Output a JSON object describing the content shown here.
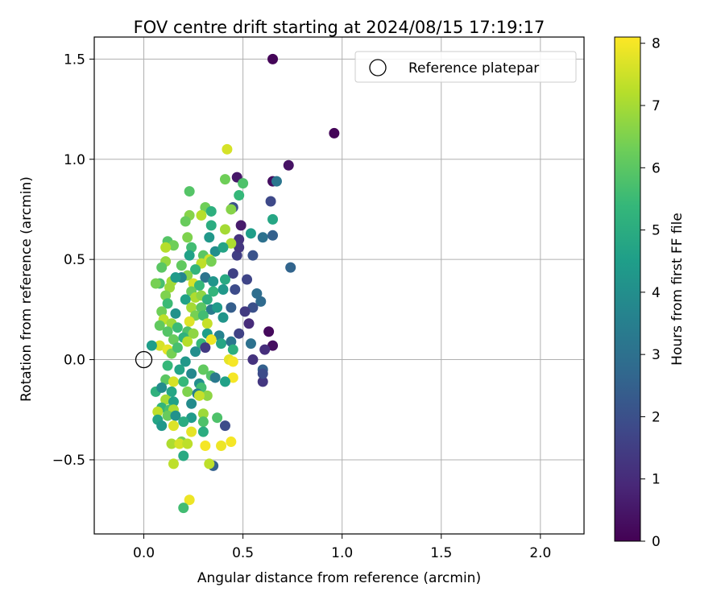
{
  "chart_data": {
    "type": "scatter",
    "title": "FOV centre drift starting at 2024/08/15 17:19:17",
    "xlabel": "Angular distance from reference (arcmin)",
    "ylabel": "Rotation from reference (arcmin)",
    "xlim": [
      -0.25,
      2.22
    ],
    "ylim": [
      -0.87,
      1.61
    ],
    "xticks": [
      0.0,
      0.5,
      1.0,
      1.5,
      2.0
    ],
    "xtick_labels": [
      "0.0",
      "0.5",
      "1.0",
      "1.5",
      "2.0"
    ],
    "yticks": [
      -0.5,
      0.0,
      0.5,
      1.0,
      1.5
    ],
    "ytick_labels": [
      "−0.5",
      "0.0",
      "0.5",
      "1.0",
      "1.5"
    ],
    "grid": true,
    "legend": {
      "position": "top-right",
      "entries": [
        "Reference platepar"
      ]
    },
    "reference_point": {
      "label": "Reference platepar",
      "x": 0.0,
      "y": 0.0
    },
    "colorbar": {
      "label": "Hours from first FF file",
      "range": [
        0,
        8.1
      ],
      "ticks": [
        0,
        1,
        2,
        3,
        4,
        5,
        6,
        7,
        8
      ],
      "colormap": "viridis"
    },
    "points": [
      {
        "x": 0.65,
        "y": 1.5,
        "c": 0.1
      },
      {
        "x": 0.96,
        "y": 1.13,
        "c": 0.1
      },
      {
        "x": 0.73,
        "y": 0.97,
        "c": 0.4
      },
      {
        "x": 0.47,
        "y": 0.91,
        "c": 0.5
      },
      {
        "x": 0.65,
        "y": 0.89,
        "c": 0.3
      },
      {
        "x": 0.67,
        "y": 0.89,
        "c": 3.2
      },
      {
        "x": 0.64,
        "y": 0.79,
        "c": 1.8
      },
      {
        "x": 0.45,
        "y": 0.76,
        "c": 2.0
      },
      {
        "x": 0.49,
        "y": 0.67,
        "c": 0.6
      },
      {
        "x": 0.48,
        "y": 0.6,
        "c": 1.2
      },
      {
        "x": 0.6,
        "y": 0.61,
        "c": 3.0
      },
      {
        "x": 0.65,
        "y": 0.62,
        "c": 2.5
      },
      {
        "x": 0.55,
        "y": 0.52,
        "c": 2.1
      },
      {
        "x": 0.47,
        "y": 0.52,
        "c": 1.5
      },
      {
        "x": 0.48,
        "y": 0.56,
        "c": 1.3
      },
      {
        "x": 0.74,
        "y": 0.46,
        "c": 2.6
      },
      {
        "x": 0.52,
        "y": 0.4,
        "c": 1.7
      },
      {
        "x": 0.46,
        "y": 0.35,
        "c": 1.9
      },
      {
        "x": 0.57,
        "y": 0.33,
        "c": 2.9
      },
      {
        "x": 0.59,
        "y": 0.29,
        "c": 2.8
      },
      {
        "x": 0.55,
        "y": 0.26,
        "c": 2.0
      },
      {
        "x": 0.44,
        "y": 0.26,
        "c": 2.4
      },
      {
        "x": 0.51,
        "y": 0.24,
        "c": 1.4
      },
      {
        "x": 0.45,
        "y": 0.43,
        "c": 1.6
      },
      {
        "x": 0.63,
        "y": 0.14,
        "c": 0.2
      },
      {
        "x": 0.65,
        "y": 0.07,
        "c": 0.3
      },
      {
        "x": 0.61,
        "y": 0.05,
        "c": 1.1
      },
      {
        "x": 0.54,
        "y": 0.08,
        "c": 3.0
      },
      {
        "x": 0.53,
        "y": 0.18,
        "c": 1.0
      },
      {
        "x": 0.48,
        "y": 0.13,
        "c": 1.6
      },
      {
        "x": 0.55,
        "y": 0.0,
        "c": 1.2
      },
      {
        "x": 0.6,
        "y": -0.05,
        "c": 2.5
      },
      {
        "x": 0.6,
        "y": -0.11,
        "c": 1.3
      },
      {
        "x": 0.6,
        "y": -0.07,
        "c": 1.9
      },
      {
        "x": 0.35,
        "y": -0.53,
        "c": 2.5
      },
      {
        "x": 0.41,
        "y": -0.33,
        "c": 1.9
      },
      {
        "x": 0.42,
        "y": 1.05,
        "c": 7.6
      },
      {
        "x": 0.41,
        "y": 0.9,
        "c": 6.3
      },
      {
        "x": 0.5,
        "y": 0.88,
        "c": 5.8
      },
      {
        "x": 0.48,
        "y": 0.82,
        "c": 5.4
      },
      {
        "x": 0.23,
        "y": 0.84,
        "c": 5.9
      },
      {
        "x": 0.31,
        "y": 0.76,
        "c": 6.3
      },
      {
        "x": 0.34,
        "y": 0.74,
        "c": 5.1
      },
      {
        "x": 0.29,
        "y": 0.72,
        "c": 7.2
      },
      {
        "x": 0.23,
        "y": 0.72,
        "c": 6.6
      },
      {
        "x": 0.44,
        "y": 0.75,
        "c": 6.6
      },
      {
        "x": 0.65,
        "y": 0.7,
        "c": 4.8
      },
      {
        "x": 0.21,
        "y": 0.69,
        "c": 6.2
      },
      {
        "x": 0.34,
        "y": 0.67,
        "c": 5.0
      },
      {
        "x": 0.41,
        "y": 0.65,
        "c": 7.0
      },
      {
        "x": 0.54,
        "y": 0.63,
        "c": 4.5
      },
      {
        "x": 0.22,
        "y": 0.61,
        "c": 6.5
      },
      {
        "x": 0.33,
        "y": 0.61,
        "c": 4.3
      },
      {
        "x": 0.12,
        "y": 0.59,
        "c": 5.9
      },
      {
        "x": 0.15,
        "y": 0.57,
        "c": 6.3
      },
      {
        "x": 0.11,
        "y": 0.56,
        "c": 7.2
      },
      {
        "x": 0.24,
        "y": 0.56,
        "c": 5.6
      },
      {
        "x": 0.44,
        "y": 0.58,
        "c": 7.1
      },
      {
        "x": 0.36,
        "y": 0.54,
        "c": 4.0
      },
      {
        "x": 0.4,
        "y": 0.56,
        "c": 4.7
      },
      {
        "x": 0.23,
        "y": 0.52,
        "c": 4.6
      },
      {
        "x": 0.3,
        "y": 0.52,
        "c": 6.0
      },
      {
        "x": 0.33,
        "y": 0.5,
        "c": 7.5
      },
      {
        "x": 0.34,
        "y": 0.49,
        "c": 6.4
      },
      {
        "x": 0.29,
        "y": 0.48,
        "c": 7.3
      },
      {
        "x": 0.11,
        "y": 0.49,
        "c": 6.8
      },
      {
        "x": 0.19,
        "y": 0.47,
        "c": 6.1
      },
      {
        "x": 0.09,
        "y": 0.46,
        "c": 6.0
      },
      {
        "x": 0.26,
        "y": 0.45,
        "c": 5.3
      },
      {
        "x": 0.22,
        "y": 0.42,
        "c": 6.6
      },
      {
        "x": 0.19,
        "y": 0.41,
        "c": 3.7
      },
      {
        "x": 0.14,
        "y": 0.39,
        "c": 7.0
      },
      {
        "x": 0.08,
        "y": 0.38,
        "c": 5.7
      },
      {
        "x": 0.06,
        "y": 0.38,
        "c": 6.4
      },
      {
        "x": 0.13,
        "y": 0.36,
        "c": 6.9
      },
      {
        "x": 0.16,
        "y": 0.41,
        "c": 4.4
      },
      {
        "x": 0.31,
        "y": 0.41,
        "c": 3.1
      },
      {
        "x": 0.41,
        "y": 0.4,
        "c": 4.9
      },
      {
        "x": 0.35,
        "y": 0.39,
        "c": 4.2
      },
      {
        "x": 0.25,
        "y": 0.38,
        "c": 7.6
      },
      {
        "x": 0.28,
        "y": 0.37,
        "c": 5.4
      },
      {
        "x": 0.24,
        "y": 0.34,
        "c": 6.2
      },
      {
        "x": 0.35,
        "y": 0.34,
        "c": 5.3
      },
      {
        "x": 0.4,
        "y": 0.35,
        "c": 4.3
      },
      {
        "x": 0.11,
        "y": 0.32,
        "c": 6.5
      },
      {
        "x": 0.26,
        "y": 0.31,
        "c": 7.1
      },
      {
        "x": 0.29,
        "y": 0.32,
        "c": 6.7
      },
      {
        "x": 0.32,
        "y": 0.3,
        "c": 5.1
      },
      {
        "x": 0.21,
        "y": 0.3,
        "c": 4.6
      },
      {
        "x": 0.12,
        "y": 0.28,
        "c": 5.5
      },
      {
        "x": 0.24,
        "y": 0.26,
        "c": 7.0
      },
      {
        "x": 0.29,
        "y": 0.26,
        "c": 6.0
      },
      {
        "x": 0.34,
        "y": 0.25,
        "c": 3.4
      },
      {
        "x": 0.37,
        "y": 0.26,
        "c": 4.4
      },
      {
        "x": 0.09,
        "y": 0.24,
        "c": 6.3
      },
      {
        "x": 0.16,
        "y": 0.23,
        "c": 4.1
      },
      {
        "x": 0.26,
        "y": 0.22,
        "c": 6.4
      },
      {
        "x": 0.3,
        "y": 0.22,
        "c": 5.6
      },
      {
        "x": 0.4,
        "y": 0.21,
        "c": 4.2
      },
      {
        "x": 0.1,
        "y": 0.2,
        "c": 7.3
      },
      {
        "x": 0.14,
        "y": 0.18,
        "c": 6.9
      },
      {
        "x": 0.23,
        "y": 0.19,
        "c": 7.7
      },
      {
        "x": 0.32,
        "y": 0.18,
        "c": 7.4
      },
      {
        "x": 0.17,
        "y": 0.16,
        "c": 5.5
      },
      {
        "x": 0.08,
        "y": 0.17,
        "c": 6.1
      },
      {
        "x": 0.12,
        "y": 0.14,
        "c": 5.9
      },
      {
        "x": 0.22,
        "y": 0.14,
        "c": 5.8
      },
      {
        "x": 0.25,
        "y": 0.13,
        "c": 6.7
      },
      {
        "x": 0.32,
        "y": 0.13,
        "c": 4.5
      },
      {
        "x": 0.38,
        "y": 0.12,
        "c": 3.6
      },
      {
        "x": 0.2,
        "y": 0.11,
        "c": 5.2
      },
      {
        "x": 0.15,
        "y": 0.1,
        "c": 6.2
      },
      {
        "x": 0.22,
        "y": 0.09,
        "c": 7.2
      },
      {
        "x": 0.29,
        "y": 0.08,
        "c": 5.4
      },
      {
        "x": 0.34,
        "y": 0.1,
        "c": 7.9
      },
      {
        "x": 0.39,
        "y": 0.08,
        "c": 4.8
      },
      {
        "x": 0.44,
        "y": 0.09,
        "c": 3.2
      },
      {
        "x": 0.08,
        "y": 0.07,
        "c": 7.6
      },
      {
        "x": 0.12,
        "y": 0.05,
        "c": 7.8
      },
      {
        "x": 0.14,
        "y": 0.03,
        "c": 6.4
      },
      {
        "x": 0.17,
        "y": 0.06,
        "c": 5.7
      },
      {
        "x": 0.04,
        "y": 0.07,
        "c": 4.5
      },
      {
        "x": 0.26,
        "y": 0.04,
        "c": 4.0
      },
      {
        "x": 0.31,
        "y": 0.06,
        "c": 1.4
      },
      {
        "x": 0.45,
        "y": 0.05,
        "c": 5.1
      },
      {
        "x": 0.21,
        "y": -0.01,
        "c": 4.3
      },
      {
        "x": 0.12,
        "y": -0.03,
        "c": 5.4
      },
      {
        "x": 0.18,
        "y": -0.05,
        "c": 4.7
      },
      {
        "x": 0.24,
        "y": -0.07,
        "c": 3.8
      },
      {
        "x": 0.3,
        "y": -0.05,
        "c": 6.1
      },
      {
        "x": 0.34,
        "y": -0.08,
        "c": 5.9
      },
      {
        "x": 0.43,
        "y": 0.0,
        "c": 7.8
      },
      {
        "x": 0.45,
        "y": -0.01,
        "c": 8.0
      },
      {
        "x": 0.45,
        "y": -0.09,
        "c": 8.0
      },
      {
        "x": 0.41,
        "y": -0.11,
        "c": 4.6
      },
      {
        "x": 0.36,
        "y": -0.09,
        "c": 3.3
      },
      {
        "x": 0.11,
        "y": -0.1,
        "c": 6.0
      },
      {
        "x": 0.15,
        "y": -0.11,
        "c": 7.6
      },
      {
        "x": 0.2,
        "y": -0.11,
        "c": 5.4
      },
      {
        "x": 0.28,
        "y": -0.12,
        "c": 4.0
      },
      {
        "x": 0.29,
        "y": -0.14,
        "c": 5.6
      },
      {
        "x": 0.06,
        "y": -0.16,
        "c": 5.2
      },
      {
        "x": 0.09,
        "y": -0.14,
        "c": 3.9
      },
      {
        "x": 0.14,
        "y": -0.16,
        "c": 4.8
      },
      {
        "x": 0.22,
        "y": -0.16,
        "c": 6.5
      },
      {
        "x": 0.27,
        "y": -0.17,
        "c": 3.5
      },
      {
        "x": 0.32,
        "y": -0.18,
        "c": 6.7
      },
      {
        "x": 0.28,
        "y": -0.18,
        "c": 7.4
      },
      {
        "x": 0.11,
        "y": -0.2,
        "c": 7.0
      },
      {
        "x": 0.24,
        "y": -0.22,
        "c": 3.9
      },
      {
        "x": 0.15,
        "y": -0.21,
        "c": 4.6
      },
      {
        "x": 0.09,
        "y": -0.24,
        "c": 5.3
      },
      {
        "x": 0.13,
        "y": -0.25,
        "c": 5.7
      },
      {
        "x": 0.15,
        "y": -0.25,
        "c": 7.1
      },
      {
        "x": 0.07,
        "y": -0.26,
        "c": 7.3
      },
      {
        "x": 0.12,
        "y": -0.28,
        "c": 6.2
      },
      {
        "x": 0.16,
        "y": -0.28,
        "c": 4.1
      },
      {
        "x": 0.24,
        "y": -0.29,
        "c": 4.4
      },
      {
        "x": 0.3,
        "y": -0.27,
        "c": 6.9
      },
      {
        "x": 0.37,
        "y": -0.29,
        "c": 5.8
      },
      {
        "x": 0.07,
        "y": -0.3,
        "c": 4.7
      },
      {
        "x": 0.09,
        "y": -0.33,
        "c": 4.3
      },
      {
        "x": 0.2,
        "y": -0.31,
        "c": 5.0
      },
      {
        "x": 0.3,
        "y": -0.31,
        "c": 5.8
      },
      {
        "x": 0.15,
        "y": -0.33,
        "c": 7.7
      },
      {
        "x": 0.3,
        "y": -0.36,
        "c": 5.0
      },
      {
        "x": 0.24,
        "y": -0.36,
        "c": 7.8
      },
      {
        "x": 0.14,
        "y": -0.42,
        "c": 7.1
      },
      {
        "x": 0.19,
        "y": -0.41,
        "c": 6.4
      },
      {
        "x": 0.18,
        "y": -0.42,
        "c": 7.6
      },
      {
        "x": 0.22,
        "y": -0.42,
        "c": 7.3
      },
      {
        "x": 0.31,
        "y": -0.43,
        "c": 8.0
      },
      {
        "x": 0.39,
        "y": -0.43,
        "c": 7.9
      },
      {
        "x": 0.44,
        "y": -0.41,
        "c": 8.0
      },
      {
        "x": 0.2,
        "y": -0.48,
        "c": 4.9
      },
      {
        "x": 0.15,
        "y": -0.52,
        "c": 7.3
      },
      {
        "x": 0.33,
        "y": -0.52,
        "c": 7.3
      },
      {
        "x": 0.23,
        "y": -0.7,
        "c": 7.9
      },
      {
        "x": 0.2,
        "y": -0.74,
        "c": 5.6
      }
    ]
  }
}
